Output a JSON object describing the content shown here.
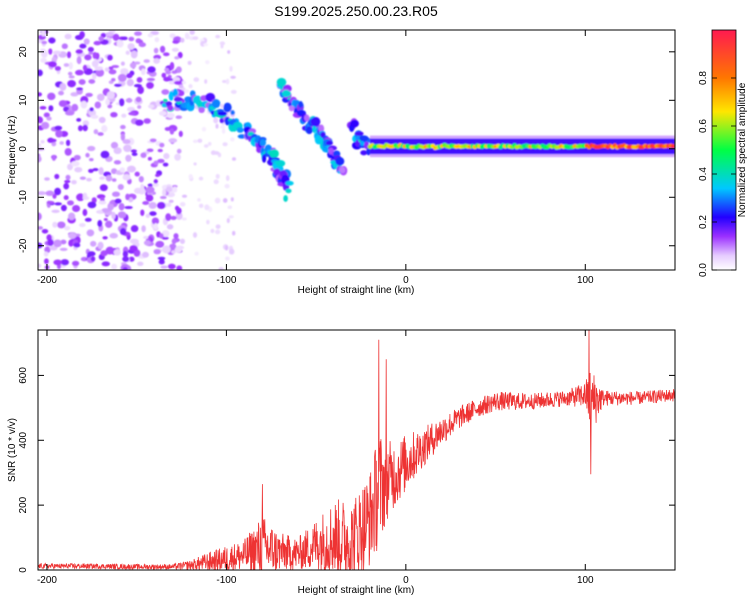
{
  "chart_data": [
    {
      "type": "heatmap",
      "title": "S199.2025.250.00.23.R05",
      "xlabel": "Height of straight line (km)",
      "ylabel": "Frequency (Hz)",
      "xlim": [
        -205,
        150
      ],
      "ylim": [
        -25,
        24.5
      ],
      "xticks": [
        -200,
        -100,
        0,
        100
      ],
      "xtick_labels": [
        "-200",
        "-100",
        "0",
        "100"
      ],
      "yticks": [
        -20,
        -10,
        0,
        10,
        20
      ],
      "ytick_labels": [
        "-20",
        "-10",
        "0",
        "10",
        "20"
      ],
      "colorbar": {
        "label": "Normalized spectral amplitude",
        "range": [
          0,
          1
        ],
        "ticks": [
          0.0,
          0.2,
          0.4,
          0.6,
          0.8
        ],
        "tick_labels": [
          "0.0",
          "0.2",
          "0.4",
          "0.6",
          "0.8"
        ],
        "colors": [
          "#ffffff",
          "#e6ccff",
          "#9b30ff",
          "#2200ff",
          "#00c8ff",
          "#00ff44",
          "#ffe600",
          "#ff7700",
          "#ff1a50"
        ]
      },
      "features": [
        {
          "name": "scattered noise",
          "x_range": [
            -205,
            -125
          ],
          "y_range": [
            -25,
            24.5
          ],
          "amplitude": 0.12
        },
        {
          "name": "descending streak A",
          "x": [
            -135,
            -110,
            -90,
            -75,
            -65
          ],
          "y": [
            10,
            9,
            4,
            -1,
            -9
          ],
          "amplitude": 0.3
        },
        {
          "name": "descending streak B",
          "x": [
            -70,
            -55,
            -45,
            -35
          ],
          "y": [
            13,
            6,
            2,
            -6
          ],
          "amplitude": 0.28
        },
        {
          "name": "descending streak C",
          "x": [
            -30,
            -22
          ],
          "y": [
            5,
            0
          ],
          "amplitude": 0.25
        },
        {
          "name": "steady carrier",
          "x_range": [
            -20,
            150
          ],
          "y": 0.5,
          "amplitude": 0.75
        }
      ]
    },
    {
      "type": "line",
      "xlabel": "Height of straight line (km)",
      "ylabel": "SNR (10 * v/v)",
      "xlim": [
        -205,
        150
      ],
      "ylim": [
        0,
        740
      ],
      "xticks": [
        -200,
        -100,
        0,
        100
      ],
      "xtick_labels": [
        "-200",
        "-100",
        "0",
        "100"
      ],
      "yticks": [
        0,
        200,
        400,
        600
      ],
      "ytick_labels": [
        "0",
        "200",
        "400",
        "600"
      ],
      "line_color": "#ee3333",
      "trend": {
        "x": [
          -205,
          -180,
          -150,
          -130,
          -120,
          -110,
          -100,
          -90,
          -80,
          -70,
          -60,
          -50,
          -40,
          -30,
          -20,
          -15,
          -10,
          -5,
          0,
          10,
          20,
          30,
          40,
          50,
          70,
          90,
          100,
          103,
          110,
          130,
          150
        ],
        "y": [
          12,
          12,
          10,
          10,
          15,
          25,
          35,
          45,
          70,
          55,
          50,
          80,
          100,
          90,
          160,
          250,
          280,
          300,
          330,
          380,
          430,
          470,
          500,
          520,
          520,
          530,
          540,
          520,
          530,
          530,
          540
        ],
        "amplitude": [
          8,
          8,
          8,
          8,
          15,
          30,
          40,
          50,
          100,
          60,
          50,
          80,
          120,
          130,
          150,
          180,
          120,
          100,
          90,
          60,
          45,
          35,
          30,
          30,
          25,
          25,
          40,
          110,
          25,
          20,
          20
        ]
      },
      "spikes": [
        {
          "x": -80,
          "y": 265
        },
        {
          "x": -15,
          "y": 710
        },
        {
          "x": -11,
          "y": 650
        },
        {
          "x": 102,
          "y": 745
        },
        {
          "x": 103,
          "y": 295
        }
      ],
      "samples": 1800
    }
  ]
}
